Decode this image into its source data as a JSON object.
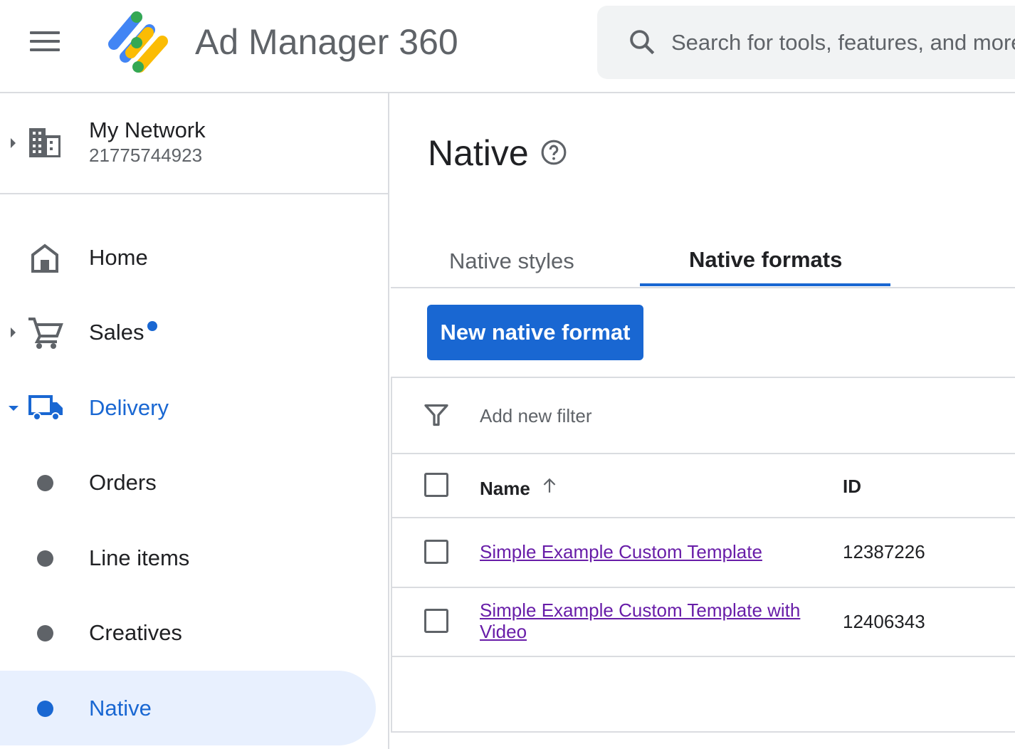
{
  "header": {
    "app_title": "Ad Manager 360",
    "search_placeholder": "Search for tools, features, and more",
    "menu_icon": "hamburger-menu-icon"
  },
  "network": {
    "name": "My Network",
    "id": "21775744923"
  },
  "sidebar": {
    "items": [
      {
        "label": "Home",
        "icon": "home-icon"
      },
      {
        "label": "Sales",
        "icon": "cart-icon",
        "badge": "new-dot"
      },
      {
        "label": "Delivery",
        "icon": "truck-icon",
        "expanded": true
      },
      {
        "label": "Orders"
      },
      {
        "label": "Line items"
      },
      {
        "label": "Creatives"
      },
      {
        "label": "Native",
        "active": true
      }
    ]
  },
  "main": {
    "title": "Native",
    "tabs": [
      {
        "label": "Native styles"
      },
      {
        "label": "Native formats",
        "active": true
      }
    ],
    "new_button": "New native format",
    "filter_label": "Add new filter",
    "columns": {
      "name": "Name",
      "id": "ID"
    },
    "rows": [
      {
        "name": "Simple Example Custom Template",
        "id": "12387226"
      },
      {
        "name_line1": "Simple Example Custom Template with",
        "name_line2": "Video",
        "id": "12406343"
      }
    ]
  },
  "colors": {
    "accent": "#1967d2",
    "active_bg": "#e8f0fe",
    "link": "#681da8"
  }
}
